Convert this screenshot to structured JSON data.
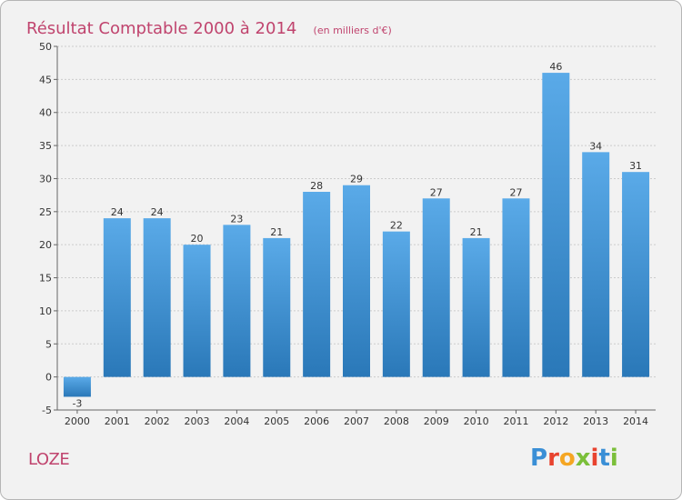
{
  "title": {
    "main": "Résultat Comptable 2000 à 2014",
    "unit": "(en milliers d'€)"
  },
  "commune": "LOZE",
  "brand": {
    "letters": [
      "P",
      "r",
      "o",
      "x",
      "i",
      "t",
      "i"
    ],
    "colors": [
      "#3a8fd6",
      "#e8432f",
      "#f5a623",
      "#7bbf3a",
      "#e8432f",
      "#3a8fd6",
      "#7bbf3a"
    ]
  },
  "colors": {
    "bar_top": "#5aaae8",
    "bar_bottom": "#2a78b8",
    "grid": "#cccccc",
    "title": "#c0446e"
  },
  "chart_data": {
    "type": "bar",
    "title": "Résultat Comptable 2000 à 2014",
    "subtitle": "(en milliers d'€)",
    "xlabel": "",
    "ylabel": "",
    "categories": [
      "2000",
      "2001",
      "2002",
      "2003",
      "2004",
      "2005",
      "2006",
      "2007",
      "2008",
      "2009",
      "2010",
      "2011",
      "2012",
      "2013",
      "2014"
    ],
    "values": [
      -3,
      24,
      24,
      20,
      23,
      21,
      28,
      29,
      22,
      27,
      21,
      27,
      46,
      34,
      31
    ],
    "ylim": [
      -5,
      50
    ],
    "yticks": [
      -5,
      0,
      5,
      10,
      15,
      20,
      25,
      30,
      35,
      40,
      45,
      50
    ],
    "grid": true,
    "legend": "none"
  }
}
